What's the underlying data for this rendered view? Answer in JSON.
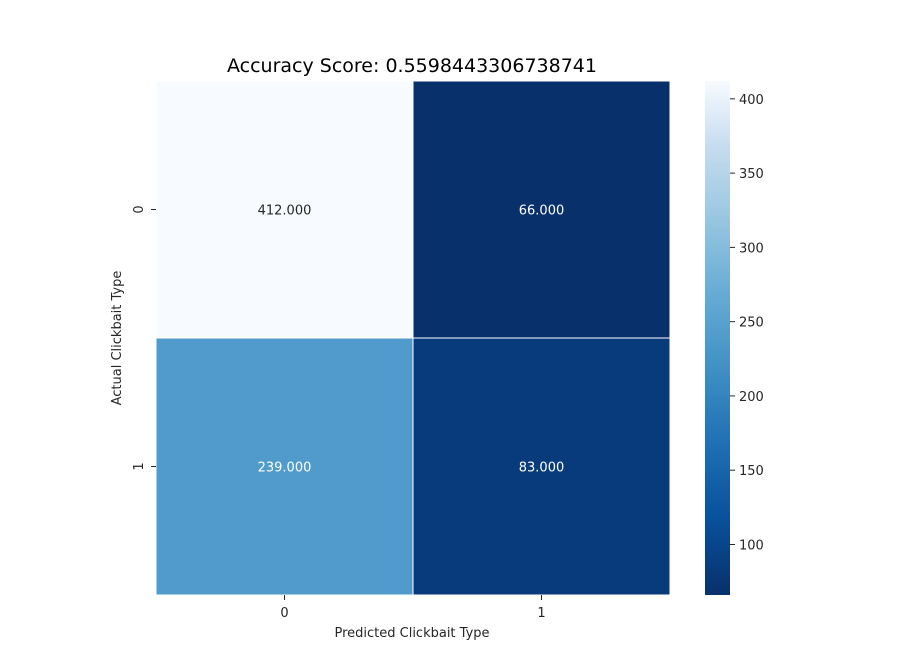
{
  "chart_data": {
    "type": "heatmap",
    "title": "Accuracy Score: 0.5598443306738741",
    "xlabel": "Predicted Clickbait Type",
    "ylabel": "Actual Clickbait Type",
    "x_categories": [
      "0",
      "1"
    ],
    "y_categories": [
      "0",
      "1"
    ],
    "values": [
      [
        412,
        66
      ],
      [
        239,
        83
      ]
    ],
    "cell_labels": [
      [
        "412.000",
        "66.000"
      ],
      [
        "239.000",
        "83.000"
      ]
    ],
    "colormap": "Blues_r",
    "color_range": [
      66,
      412
    ],
    "colorbar_ticks": [
      "100",
      "150",
      "200",
      "250",
      "300",
      "350",
      "400"
    ],
    "colors": {
      "dark": "#08306b",
      "mid_dark": "#2171b5",
      "mid": "#6baed6",
      "light": "#c6dbef",
      "lightest": "#f7fbff"
    }
  }
}
